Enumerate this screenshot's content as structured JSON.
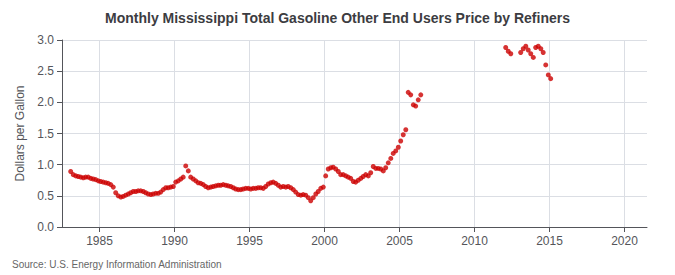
{
  "chart_data": {
    "type": "scatter",
    "title": "Monthly Mississippi Total Gasoline Other End Users Price by Refiners",
    "ylabel": "Dollars per Gallon",
    "annotations": [
      "Source: U.S. Energy Information Administration"
    ],
    "xlim": [
      1982.5,
      2021.5
    ],
    "ylim": [
      0.0,
      3.0
    ],
    "xticks": [
      1985,
      1990,
      1995,
      2000,
      2005,
      2010,
      2015,
      2020
    ],
    "yticks": [
      {
        "value": 0.0,
        "label": "0.0"
      },
      0.5,
      {
        "value": 1.0,
        "label": "1.0"
      },
      1.5,
      {
        "value": 2.0,
        "label": "2.0"
      },
      2.5,
      {
        "value": 3.0,
        "label": "3.0"
      }
    ],
    "grid": true,
    "color": "#cc0000",
    "x": [
      1983.08,
      1983.25,
      1983.42,
      1983.58,
      1983.75,
      1983.92,
      1984.08,
      1984.25,
      1984.42,
      1984.58,
      1984.75,
      1984.92,
      1985.08,
      1985.25,
      1985.42,
      1985.58,
      1985.75,
      1985.92,
      1986.08,
      1986.25,
      1986.42,
      1986.58,
      1986.75,
      1986.92,
      1987.08,
      1987.25,
      1987.42,
      1987.58,
      1987.75,
      1987.92,
      1988.08,
      1988.25,
      1988.42,
      1988.58,
      1988.75,
      1988.92,
      1989.08,
      1989.25,
      1989.42,
      1989.58,
      1989.75,
      1989.92,
      1990.08,
      1990.25,
      1990.42,
      1990.58,
      1990.75,
      1990.92,
      1991.08,
      1991.25,
      1991.42,
      1991.58,
      1991.75,
      1991.92,
      1992.08,
      1992.25,
      1992.42,
      1992.58,
      1992.75,
      1992.92,
      1993.08,
      1993.25,
      1993.42,
      1993.58,
      1993.75,
      1993.92,
      1994.08,
      1994.25,
      1994.42,
      1994.58,
      1994.75,
      1994.92,
      1995.08,
      1995.25,
      1995.42,
      1995.58,
      1995.75,
      1995.92,
      1996.08,
      1996.25,
      1996.42,
      1996.58,
      1996.75,
      1996.92,
      1997.08,
      1997.25,
      1997.42,
      1997.58,
      1997.75,
      1997.92,
      1998.08,
      1998.25,
      1998.42,
      1998.58,
      1998.75,
      1998.92,
      1999.08,
      1999.25,
      1999.42,
      1999.58,
      1999.75,
      1999.92,
      2000.08,
      2000.25,
      2000.42,
      2000.58,
      2000.75,
      2000.92,
      2001.08,
      2001.25,
      2001.42,
      2001.58,
      2001.75,
      2001.92,
      2002.08,
      2002.25,
      2002.42,
      2002.58,
      2002.75,
      2002.92,
      2003.08,
      2003.25,
      2003.42,
      2003.58,
      2003.75,
      2003.92,
      2004.08,
      2004.25,
      2004.42,
      2004.58,
      2004.75,
      2004.92,
      2005.08,
      2005.25,
      2005.42,
      2005.58,
      2005.75,
      2005.92,
      2006.08,
      2006.25,
      2006.42,
      2012.08,
      2012.25,
      2012.42,
      2013.08,
      2013.25,
      2013.42,
      2013.58,
      2013.75,
      2013.92,
      2014.08,
      2014.25,
      2014.42,
      2014.58,
      2014.75,
      2014.92,
      2015.08
    ],
    "values": [
      0.89,
      0.84,
      0.82,
      0.81,
      0.8,
      0.79,
      0.8,
      0.8,
      0.78,
      0.77,
      0.76,
      0.74,
      0.73,
      0.72,
      0.71,
      0.7,
      0.68,
      0.64,
      0.55,
      0.5,
      0.48,
      0.49,
      0.51,
      0.53,
      0.55,
      0.57,
      0.57,
      0.58,
      0.58,
      0.57,
      0.55,
      0.53,
      0.52,
      0.53,
      0.54,
      0.54,
      0.56,
      0.6,
      0.63,
      0.63,
      0.64,
      0.65,
      0.72,
      0.74,
      0.77,
      0.8,
      0.98,
      0.9,
      0.8,
      0.77,
      0.74,
      0.71,
      0.7,
      0.68,
      0.65,
      0.63,
      0.64,
      0.65,
      0.66,
      0.67,
      0.67,
      0.68,
      0.67,
      0.66,
      0.65,
      0.63,
      0.61,
      0.6,
      0.6,
      0.61,
      0.62,
      0.62,
      0.61,
      0.62,
      0.62,
      0.63,
      0.63,
      0.62,
      0.65,
      0.69,
      0.71,
      0.72,
      0.7,
      0.67,
      0.64,
      0.65,
      0.64,
      0.65,
      0.63,
      0.6,
      0.56,
      0.52,
      0.51,
      0.52,
      0.51,
      0.47,
      0.42,
      0.47,
      0.53,
      0.57,
      0.62,
      0.64,
      0.82,
      0.93,
      0.95,
      0.96,
      0.93,
      0.89,
      0.84,
      0.84,
      0.82,
      0.8,
      0.78,
      0.73,
      0.72,
      0.75,
      0.78,
      0.81,
      0.84,
      0.82,
      0.87,
      0.97,
      0.94,
      0.94,
      0.93,
      0.9,
      0.95,
      1.03,
      1.1,
      1.18,
      1.22,
      1.28,
      1.38,
      1.48,
      1.56,
      2.16,
      2.12,
      1.96,
      1.94,
      2.04,
      2.12,
      2.88,
      2.82,
      2.78,
      2.8,
      2.86,
      2.9,
      2.84,
      2.78,
      2.72,
      2.88,
      2.9,
      2.86,
      2.8,
      2.6,
      2.44,
      2.38
    ]
  }
}
